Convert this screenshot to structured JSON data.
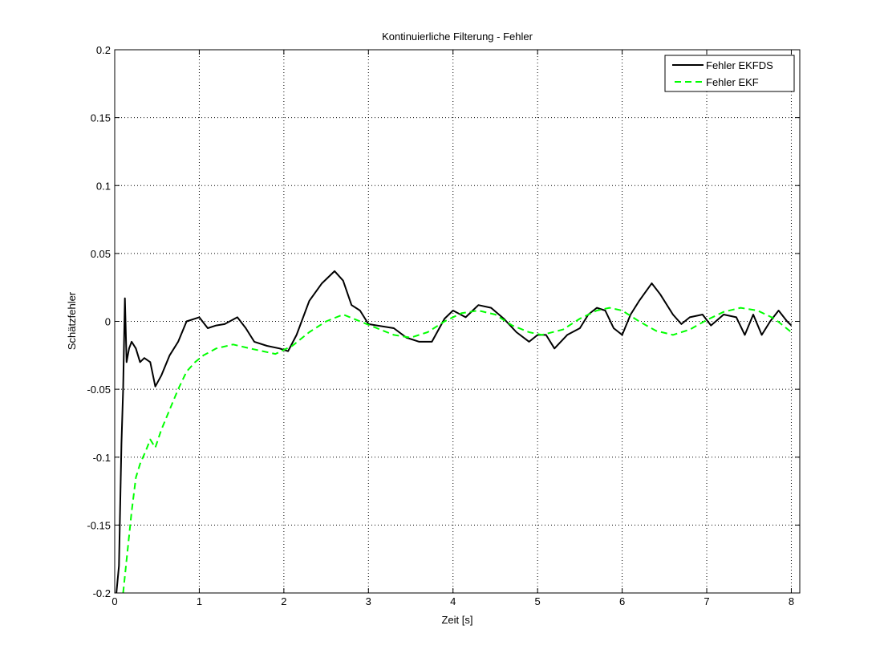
{
  "chart_data": {
    "type": "line",
    "title": "Kontinuierliche Filterung - Fehler",
    "xlabel": "Zeit [s]",
    "ylabel": "Schätzfehler",
    "xlim": [
      0,
      8.1
    ],
    "ylim": [
      -0.2,
      0.2
    ],
    "xticks": [
      0,
      1,
      2,
      3,
      4,
      5,
      6,
      7,
      8
    ],
    "xtick_labels": [
      "0",
      "1",
      "2",
      "3",
      "4",
      "5",
      "6",
      "7",
      "8"
    ],
    "yticks": [
      -0.2,
      -0.15,
      -0.1,
      -0.05,
      0,
      0.05,
      0.1,
      0.15,
      0.2
    ],
    "ytick_labels": [
      "-0.2",
      "-0.15",
      "-0.1",
      "-0.05",
      "0",
      "0.05",
      "0.1",
      "0.15",
      "0.2"
    ],
    "grid": true,
    "legend_position": "top-right",
    "series": [
      {
        "name": "Fehler EKFDS",
        "color": "#000000",
        "style": "solid",
        "x": [
          0.02,
          0.05,
          0.08,
          0.1,
          0.12,
          0.14,
          0.17,
          0.2,
          0.25,
          0.3,
          0.35,
          0.42,
          0.48,
          0.55,
          0.65,
          0.75,
          0.85,
          1.0,
          1.1,
          1.2,
          1.3,
          1.45,
          1.55,
          1.65,
          1.8,
          1.95,
          2.05,
          2.15,
          2.3,
          2.45,
          2.6,
          2.7,
          2.8,
          2.9,
          3.0,
          3.1,
          3.3,
          3.45,
          3.6,
          3.75,
          3.9,
          4.0,
          4.15,
          4.3,
          4.45,
          4.6,
          4.75,
          4.9,
          5.0,
          5.1,
          5.2,
          5.35,
          5.5,
          5.6,
          5.7,
          5.8,
          5.9,
          6.0,
          6.1,
          6.2,
          6.35,
          6.45,
          6.6,
          6.7,
          6.8,
          6.95,
          7.05,
          7.2,
          7.35,
          7.45,
          7.55,
          7.65,
          7.75,
          7.85,
          7.95,
          8.0
        ],
        "y": [
          -0.2,
          -0.18,
          -0.09,
          -0.05,
          0.017,
          -0.03,
          -0.02,
          -0.015,
          -0.02,
          -0.03,
          -0.027,
          -0.03,
          -0.048,
          -0.04,
          -0.025,
          -0.015,
          0.0,
          0.003,
          -0.005,
          -0.003,
          -0.002,
          0.003,
          -0.005,
          -0.015,
          -0.018,
          -0.02,
          -0.022,
          -0.01,
          0.015,
          0.028,
          0.037,
          0.03,
          0.012,
          0.008,
          -0.002,
          -0.003,
          -0.005,
          -0.012,
          -0.015,
          -0.015,
          0.002,
          0.008,
          0.003,
          0.012,
          0.01,
          0.002,
          -0.008,
          -0.015,
          -0.01,
          -0.01,
          -0.02,
          -0.01,
          -0.005,
          0.005,
          0.01,
          0.008,
          -0.005,
          -0.01,
          0.005,
          0.015,
          0.028,
          0.02,
          0.005,
          -0.002,
          0.003,
          0.005,
          -0.003,
          0.005,
          0.003,
          -0.01,
          0.005,
          -0.01,
          0.0,
          0.008,
          0.0,
          -0.003
        ]
      },
      {
        "name": "Fehler EKF",
        "color": "#00ff00",
        "style": "dashed",
        "x": [
          0.1,
          0.15,
          0.2,
          0.25,
          0.3,
          0.37,
          0.42,
          0.48,
          0.55,
          0.65,
          0.75,
          0.85,
          0.95,
          1.05,
          1.2,
          1.4,
          1.6,
          1.9,
          2.1,
          2.3,
          2.5,
          2.7,
          2.9,
          3.1,
          3.3,
          3.5,
          3.7,
          3.9,
          4.1,
          4.3,
          4.5,
          4.7,
          4.9,
          5.05,
          5.3,
          5.5,
          5.7,
          5.85,
          6.0,
          6.2,
          6.4,
          6.6,
          6.8,
          7.0,
          7.2,
          7.4,
          7.6,
          7.8,
          8.0
        ],
        "y": [
          -0.2,
          -0.17,
          -0.14,
          -0.115,
          -0.105,
          -0.095,
          -0.087,
          -0.093,
          -0.08,
          -0.065,
          -0.05,
          -0.037,
          -0.03,
          -0.025,
          -0.02,
          -0.017,
          -0.02,
          -0.024,
          -0.018,
          -0.008,
          0.0,
          0.005,
          0.0,
          -0.005,
          -0.01,
          -0.012,
          -0.008,
          0.0,
          0.006,
          0.008,
          0.005,
          -0.003,
          -0.008,
          -0.01,
          -0.006,
          0.002,
          0.008,
          0.01,
          0.008,
          0.0,
          -0.007,
          -0.01,
          -0.006,
          0.001,
          0.007,
          0.01,
          0.008,
          0.002,
          -0.008
        ]
      }
    ]
  }
}
